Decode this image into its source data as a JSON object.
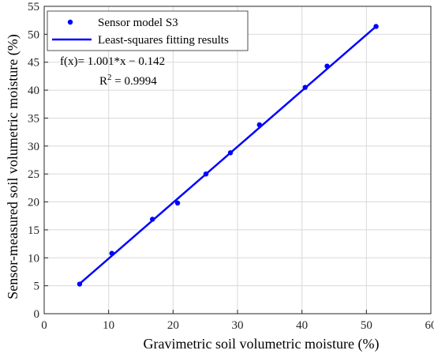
{
  "chart_data": {
    "type": "scatter",
    "xlabel": "Gravimetric soil volumetric moisture (%)",
    "ylabel": "Sensor-measured soil volumetric moisture (%)",
    "xlim": [
      0,
      60
    ],
    "ylim": [
      0,
      55
    ],
    "x_ticks": [
      "0",
      "10",
      "20",
      "30",
      "40",
      "50",
      "60"
    ],
    "y_ticks": [
      "0",
      "5",
      "10",
      "15",
      "20",
      "25",
      "30",
      "35",
      "40",
      "45",
      "50",
      "55"
    ],
    "grid": true,
    "legend_position": "top-left",
    "colors": {
      "series": "#0000ff",
      "axis": "#262626",
      "grid": "#d9d9d9"
    },
    "series": [
      {
        "name": "Sensor model S3",
        "type": "scatter",
        "x": [
          5.5,
          10.5,
          16.8,
          20.7,
          25.1,
          28.9,
          33.4,
          40.5,
          43.9,
          51.5
        ],
        "y": [
          5.3,
          10.8,
          16.9,
          19.8,
          25.0,
          28.8,
          33.8,
          40.5,
          44.3,
          51.4
        ]
      },
      {
        "name": "Least-squares fitting results",
        "type": "line",
        "x": [
          5.5,
          51.5
        ],
        "y": [
          5.36,
          51.41
        ]
      }
    ],
    "annotations": {
      "equation": "f(x)= 1.001*x − 0.142",
      "r2_prefix": "R",
      "r2_exp": "2",
      "r2_value": " = 0.9994"
    }
  }
}
